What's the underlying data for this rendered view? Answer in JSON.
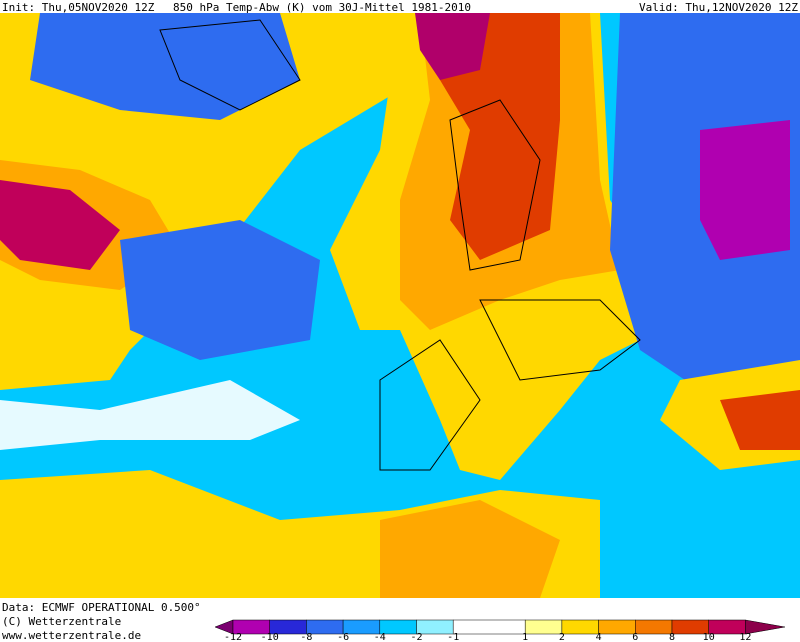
{
  "header": {
    "init": "Init: Thu,05NOV2020 12Z",
    "title": "850 hPa Temp-Abw (K) vom 30J-Mittel 1981-2010",
    "valid": "Valid: Thu,12NOV2020 12Z"
  },
  "footer": {
    "data": "Data: ECMWF OPERATIONAL 0.500°",
    "copyright": "(C) Wetterzentrale",
    "url": "www.wetterzentrale.de"
  },
  "colorbar": {
    "labels": [
      "-12",
      "-10",
      "-8",
      "-6",
      "-4",
      "-2",
      "-1",
      "1",
      "2",
      "4",
      "6",
      "8",
      "10",
      "12"
    ],
    "colors": [
      "#7a0070",
      "#b000b0",
      "#2828d8",
      "#2e6cf0",
      "#1a9cff",
      "#00c8ff",
      "#90f0ff",
      "#ffffff",
      "#ffff90",
      "#ffd800",
      "#ffa800",
      "#f47800",
      "#e03c00",
      "#c0005a",
      "#8c004a"
    ]
  }
}
